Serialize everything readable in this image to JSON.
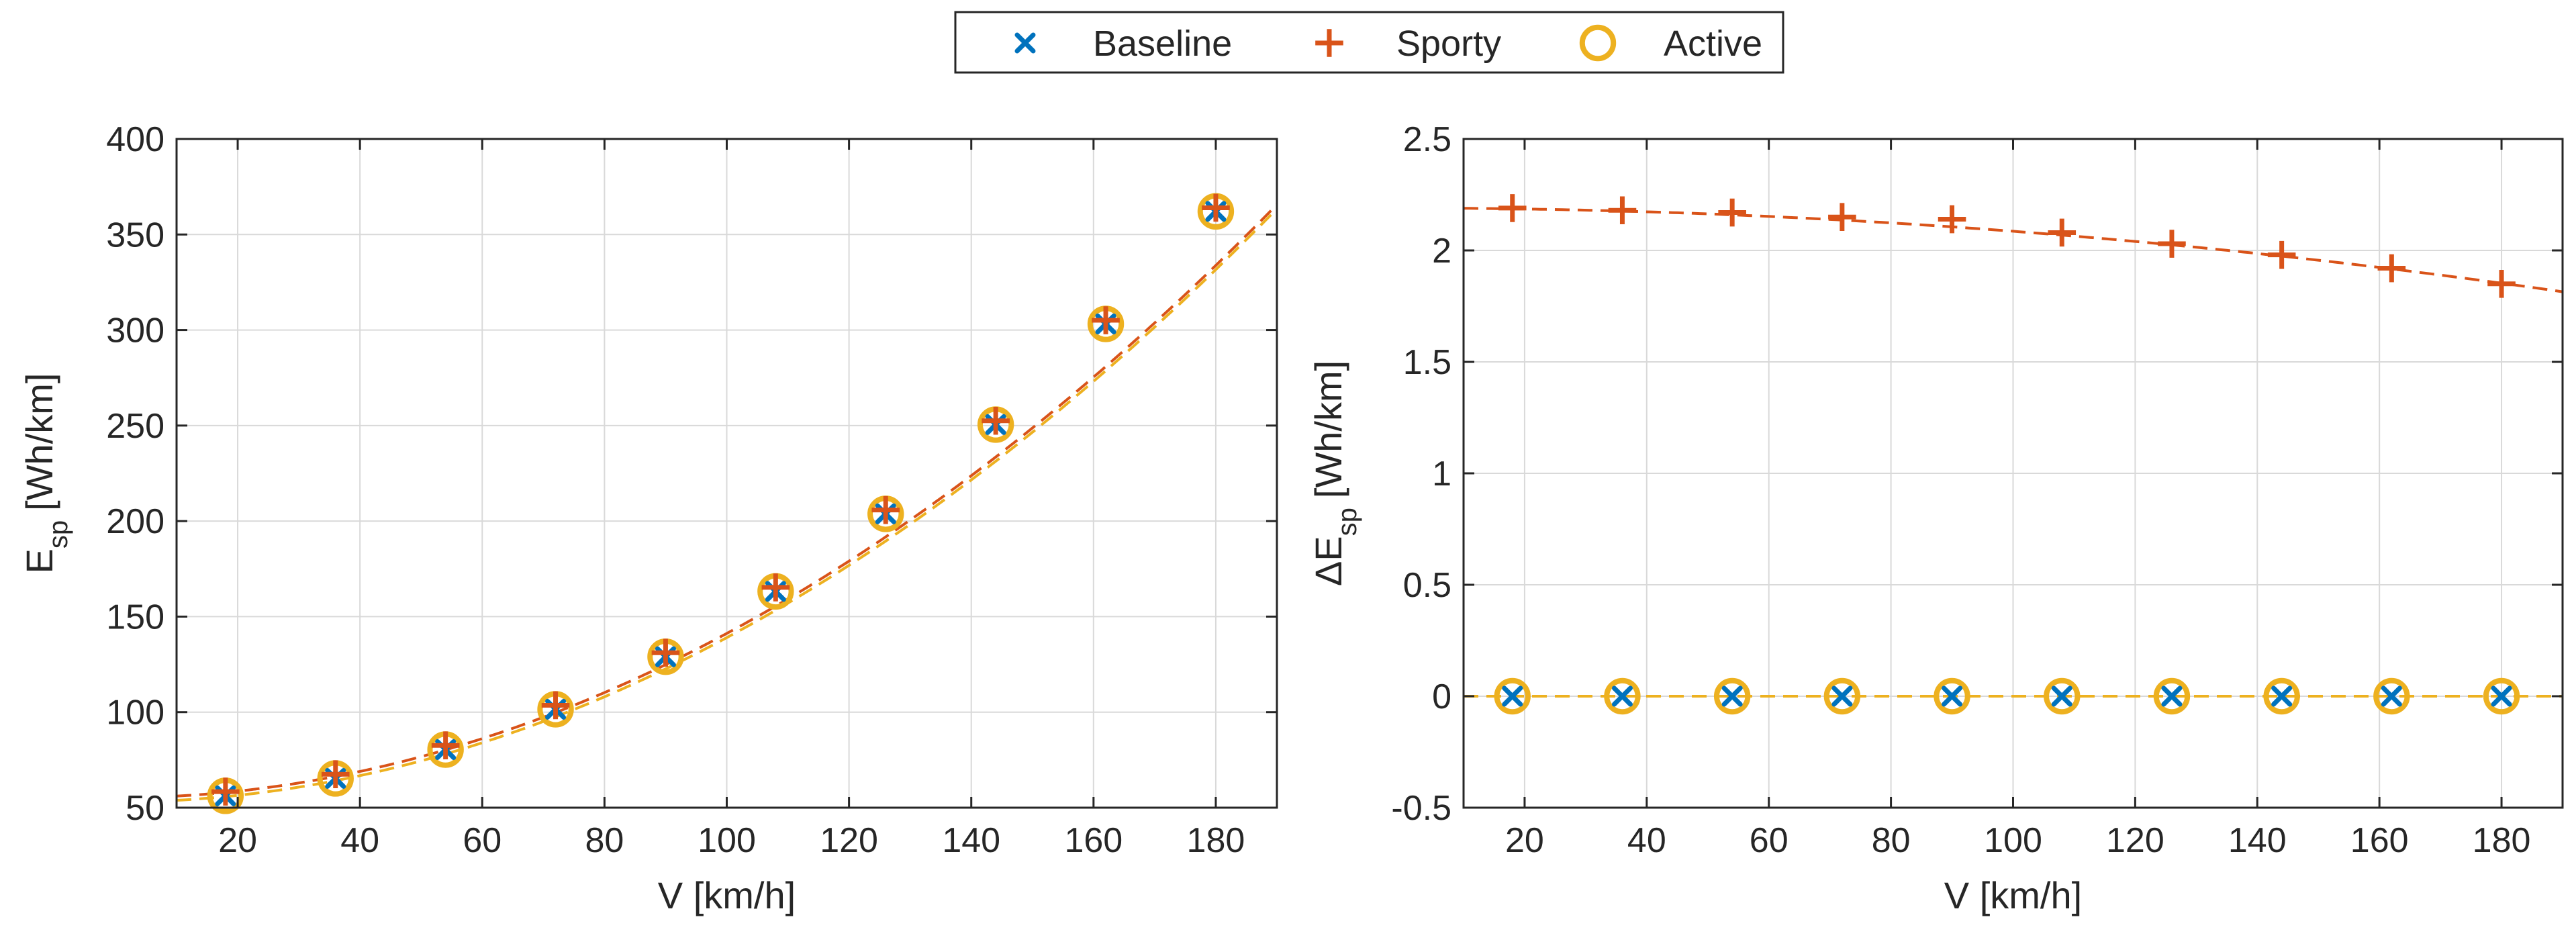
{
  "colors": {
    "baseline": "#0072BD",
    "sporty": "#D95319",
    "active": "#EDB120",
    "axis": "#262626",
    "grid": "#d9d9d9"
  },
  "legend": {
    "entries": [
      {
        "label": "Baseline",
        "marker": "x-icon",
        "series": "baseline"
      },
      {
        "label": "Sporty",
        "marker": "plus-icon",
        "series": "sporty"
      },
      {
        "label": "Active",
        "marker": "circle-icon",
        "series": "active"
      }
    ]
  },
  "chart_data": [
    {
      "type": "scatter",
      "id": "left",
      "title": "",
      "xlabel": "V [km/h]",
      "ylabel_main": "E",
      "ylabel_sub": "sp",
      "ylabel_unit": "[Wh/km]",
      "xlim": [
        10,
        190
      ],
      "ylim": [
        50,
        400
      ],
      "xticks": [
        20,
        40,
        60,
        80,
        100,
        120,
        140,
        160,
        180
      ],
      "yticks": [
        50,
        100,
        150,
        200,
        250,
        300,
        350,
        400
      ],
      "xtick_labels": [
        "20",
        "40",
        "60",
        "80",
        "100",
        "120",
        "140",
        "160",
        "180"
      ],
      "ytick_labels": [
        "50",
        "100",
        "150",
        "200",
        "250",
        "300",
        "350",
        "400"
      ],
      "grid": true,
      "x": [
        18,
        36,
        54,
        72,
        90,
        108,
        126,
        144,
        162,
        180
      ],
      "series": [
        {
          "name": "Baseline",
          "key": "baseline",
          "marker": "x",
          "values": [
            56.2,
            65.3,
            80.4,
            101.5,
            129.0,
            163.2,
            203.8,
            250.5,
            303.2,
            362.1
          ]
        },
        {
          "name": "Sporty",
          "key": "sporty",
          "marker": "+",
          "values": [
            58.4,
            67.5,
            82.6,
            103.6,
            131.1,
            165.3,
            205.8,
            252.5,
            305.1,
            364.0
          ]
        },
        {
          "name": "Active",
          "key": "active",
          "marker": "o",
          "values": [
            56.2,
            65.3,
            80.4,
            101.5,
            129.0,
            163.2,
            203.8,
            250.5,
            303.2,
            362.1
          ]
        }
      ],
      "fit_lines": [
        {
          "key": "sporty",
          "a": 55.2,
          "b": 0.0086
        },
        {
          "key": "active",
          "a": 53.0,
          "b": 0.0086
        }
      ]
    },
    {
      "type": "scatter",
      "id": "right",
      "title": "",
      "xlabel": "V [km/h]",
      "ylabel_main": "ΔE",
      "ylabel_sub": "sp",
      "ylabel_unit": "[Wh/km]",
      "xlim": [
        10,
        190
      ],
      "ylim": [
        -0.5,
        2.5
      ],
      "xticks": [
        20,
        40,
        60,
        80,
        100,
        120,
        140,
        160,
        180
      ],
      "yticks": [
        -0.5,
        0,
        0.5,
        1,
        1.5,
        2,
        2.5
      ],
      "xtick_labels": [
        "20",
        "40",
        "60",
        "80",
        "100",
        "120",
        "140",
        "160",
        "180"
      ],
      "ytick_labels": [
        "-0.5",
        "0",
        "0.5",
        "1",
        "1.5",
        "2",
        "2.5"
      ],
      "grid": true,
      "x": [
        18,
        36,
        54,
        72,
        90,
        108,
        126,
        144,
        162,
        180
      ],
      "series": [
        {
          "name": "Baseline",
          "key": "baseline",
          "marker": "x",
          "values": [
            0,
            0,
            0,
            0,
            0,
            0,
            0,
            0,
            0,
            0
          ]
        },
        {
          "name": "Sporty",
          "key": "sporty",
          "marker": "+",
          "values": [
            2.19,
            2.18,
            2.17,
            2.15,
            2.14,
            2.08,
            2.03,
            1.98,
            1.92,
            1.85
          ]
        },
        {
          "name": "Active",
          "key": "active",
          "marker": "o",
          "values": [
            0,
            0,
            0,
            0,
            0,
            0,
            0,
            0,
            0,
            0
          ]
        }
      ],
      "fit_lines": [
        {
          "key": "sporty",
          "c0": 2.19,
          "c2": -1.04e-05
        },
        {
          "key": "active",
          "c0": 0,
          "c2": 0
        }
      ]
    }
  ]
}
